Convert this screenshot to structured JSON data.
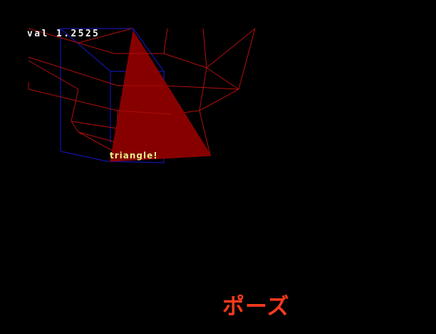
{
  "hud": {
    "value_text": "val 1.2525"
  },
  "scene": {
    "triangle_label": "triangle!",
    "triangle_color": "#870000",
    "wireframe_red_color": "#b30f0f",
    "wireframe_blue_color": "#1414a8"
  },
  "pause": {
    "label": "ポーズ",
    "color": "#ff3a1c"
  }
}
